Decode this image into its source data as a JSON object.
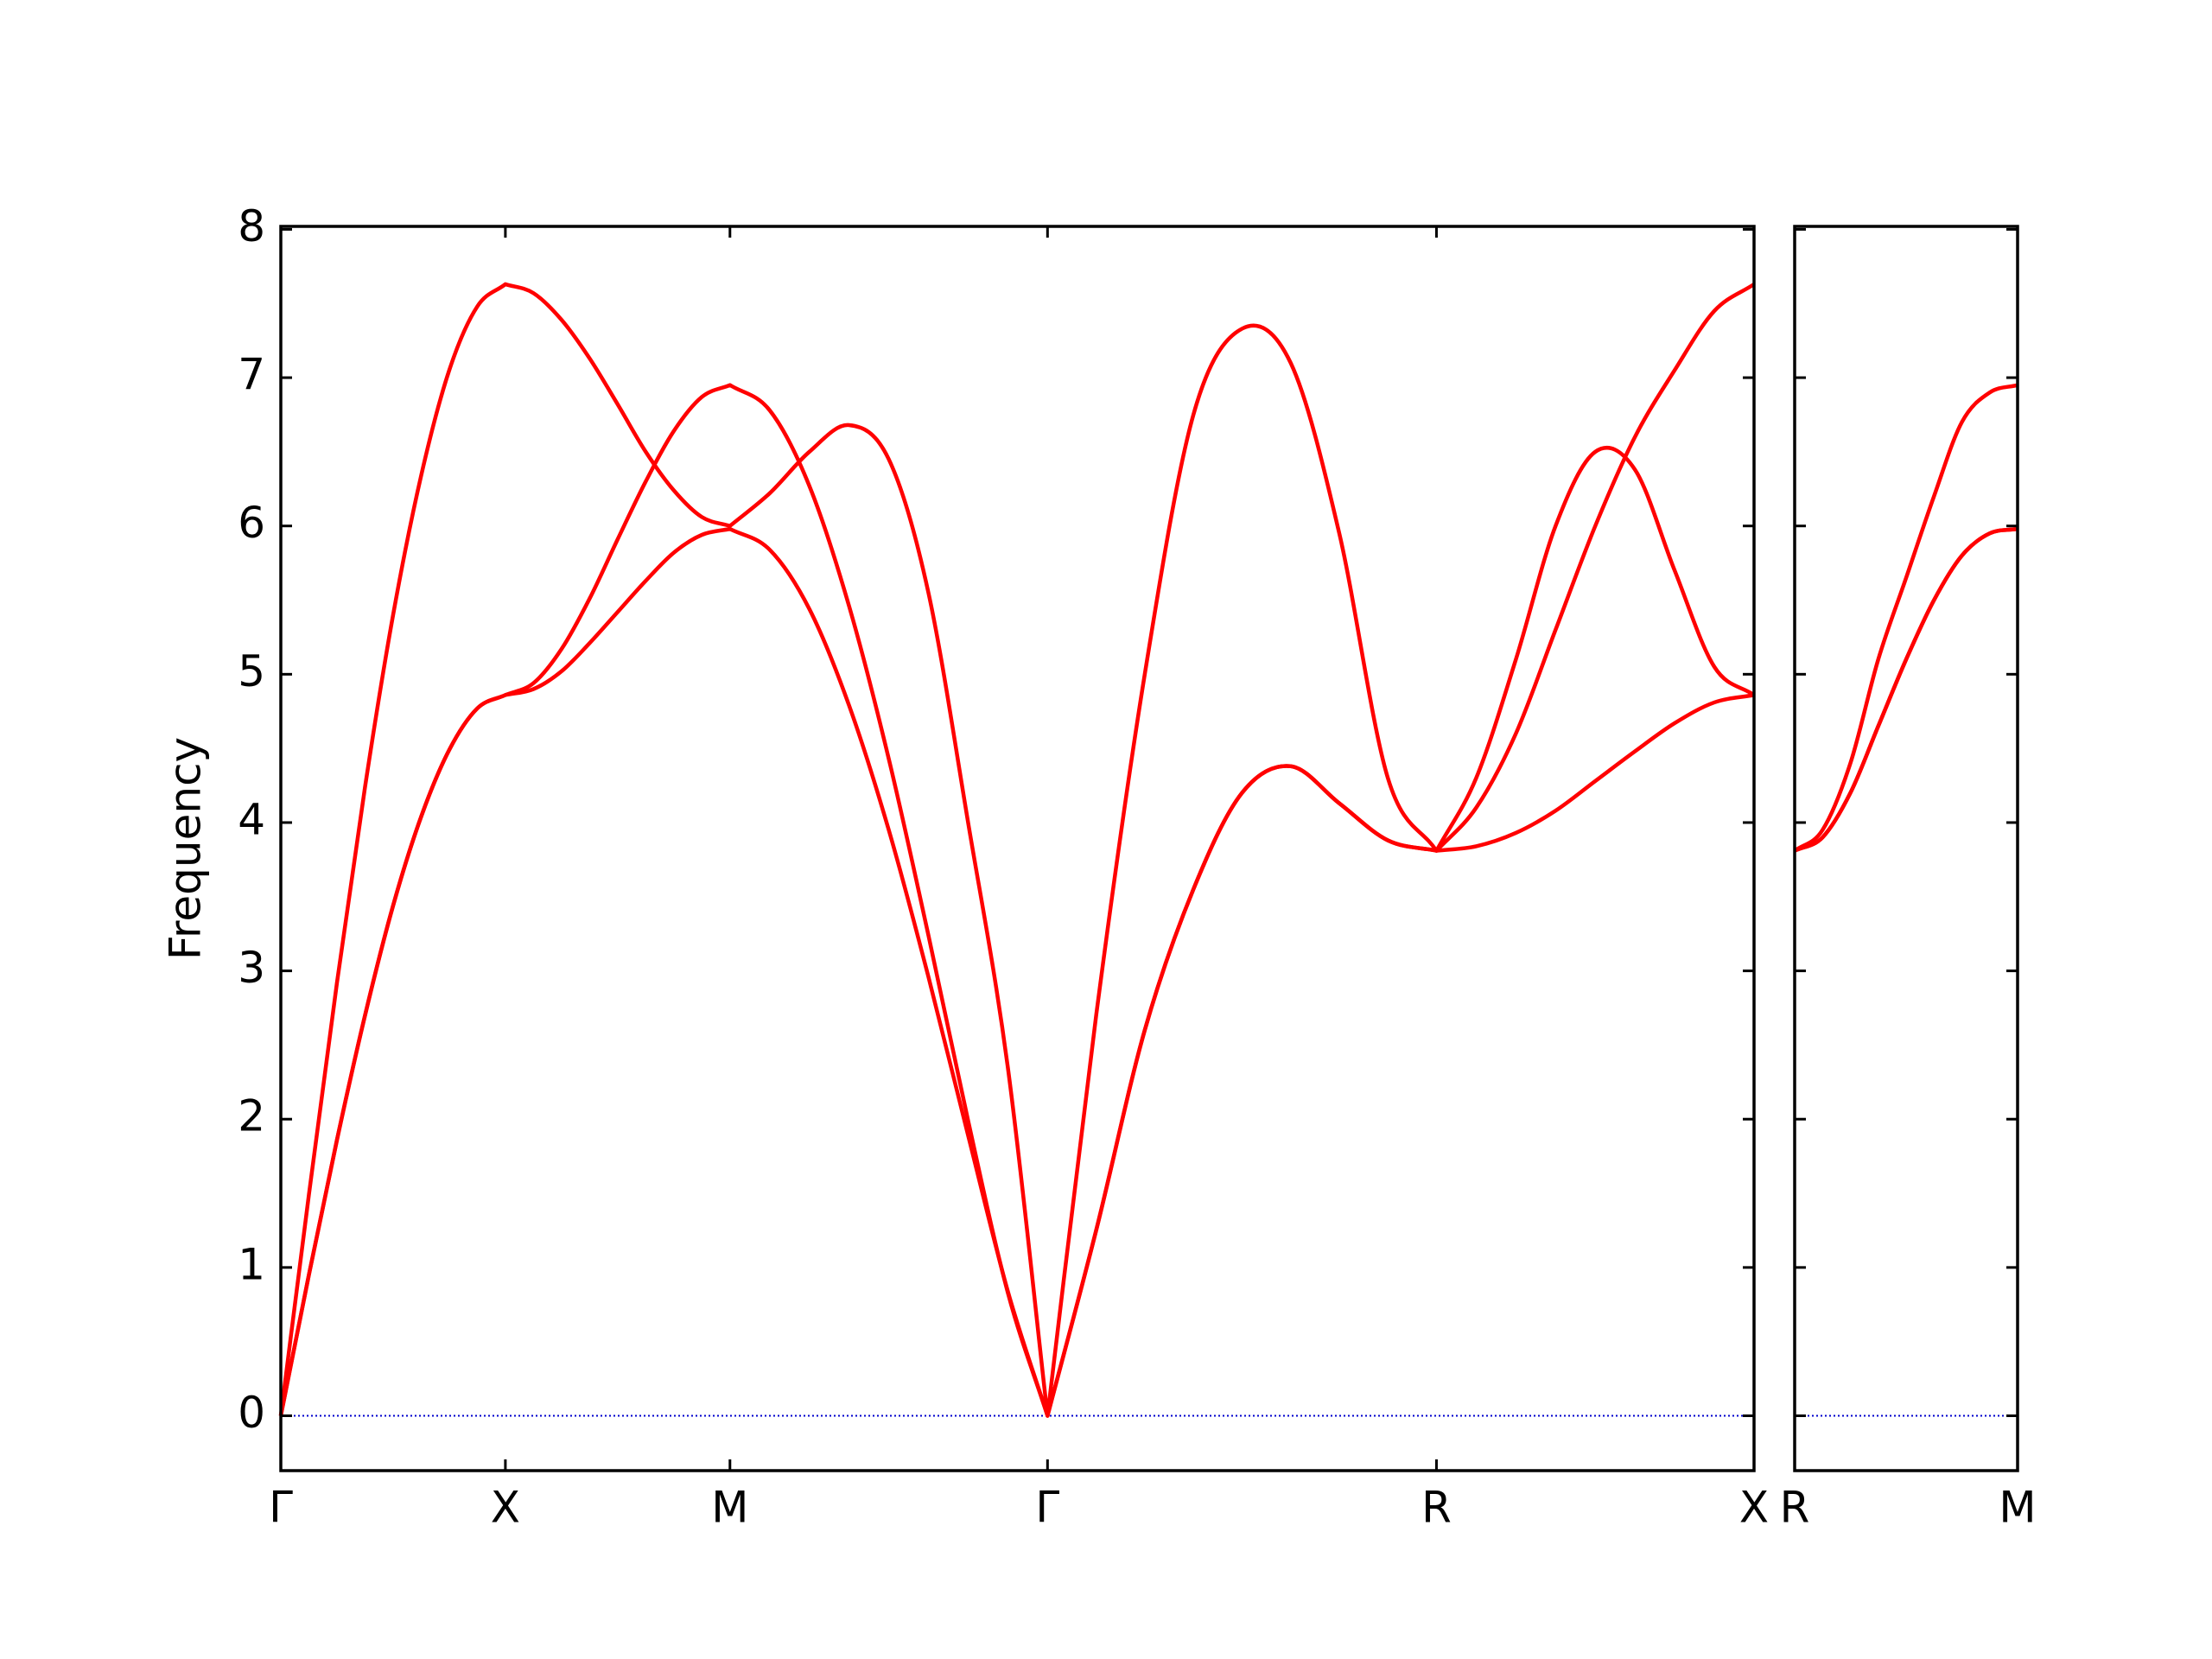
{
  "chart_data": [
    {
      "type": "line",
      "ylabel": "Frequency",
      "x": [
        0,
        0.0625,
        0.125,
        0.1875,
        0.25,
        0.3125,
        0.375,
        0.4375,
        0.5,
        0.5625,
        0.625,
        0.6875,
        0.75,
        0.8125,
        0.875,
        0.9375,
        1.0,
        1.0884,
        1.1768,
        1.2652,
        1.3536,
        1.4419,
        1.5303,
        1.6187,
        1.7071,
        1.8154,
        1.9236,
        2.0319,
        2.1401,
        2.2484,
        2.3567,
        2.4649,
        2.5731,
        2.6615,
        2.7499,
        2.8383,
        2.9267,
        3.015,
        3.1034,
        3.1918,
        3.2802
      ],
      "series": [
        {
          "color": "#ff0000",
          "values": [
            0,
            1.49,
            2.92,
            4.24,
            5.4,
            6.34,
            7.05,
            7.48,
            7.63,
            7.57,
            7.39,
            7.13,
            6.82,
            6.5,
            6.24,
            6.06,
            6.0,
            6.22,
            6.5,
            6.68,
            6.45,
            5.55,
            4.0,
            2.35,
            0,
            2.7,
            5.0,
            6.75,
            7.33,
            7.1,
            5.95,
            4.3,
            3.81,
            4.1,
            4.6,
            5.3,
            6.0,
            6.6,
            7.05,
            7.45,
            7.63
          ]
        },
        {
          "color": "#ff0000",
          "values": [
            0,
            0.95,
            1.86,
            2.7,
            3.44,
            4.04,
            4.49,
            4.77,
            4.86,
            4.94,
            5.17,
            5.51,
            5.91,
            6.3,
            6.64,
            6.87,
            6.95,
            6.78,
            6.27,
            5.46,
            4.43,
            3.24,
            1.99,
            0.83,
            0,
            1.25,
            2.6,
            3.55,
            4.2,
            4.38,
            4.13,
            3.88,
            3.81,
            4.3,
            5.1,
            6.0,
            6.5,
            6.38,
            5.7,
            5.05,
            4.86
          ]
        },
        {
          "color": "#ff0000",
          "values": [
            0,
            0.95,
            1.86,
            2.7,
            3.44,
            4.04,
            4.49,
            4.77,
            4.86,
            4.9,
            5.02,
            5.21,
            5.42,
            5.63,
            5.82,
            5.94,
            5.98,
            5.84,
            5.44,
            4.79,
            3.95,
            2.96,
            1.89,
            0.84,
            0,
            1.25,
            2.6,
            3.55,
            4.2,
            4.38,
            4.13,
            3.88,
            3.81,
            3.84,
            3.93,
            4.08,
            4.28,
            4.48,
            4.67,
            4.81,
            4.86
          ]
        }
      ],
      "xlim": [
        0,
        3.2802
      ],
      "xticks": [
        {
          "value": 0,
          "label": "Γ"
        },
        {
          "value": 0.5,
          "label": "X"
        },
        {
          "value": 1.0,
          "label": "M"
        },
        {
          "value": 1.7071,
          "label": "Γ"
        },
        {
          "value": 2.5731,
          "label": "R"
        },
        {
          "value": 3.2802,
          "label": "X"
        }
      ],
      "ylim": [
        -0.37,
        8.02
      ],
      "yticks": [
        0,
        1,
        2,
        3,
        4,
        5,
        6,
        7,
        8
      ],
      "show_ytick_labels": true,
      "hline": {
        "y": 0,
        "color": "#0000cd"
      }
    },
    {
      "type": "line",
      "x": [
        0,
        0.0625,
        0.125,
        0.1875,
        0.25,
        0.3125,
        0.375,
        0.4375,
        0.5
      ],
      "series": [
        {
          "color": "#ff0000",
          "values": [
            3.81,
            3.95,
            4.4,
            5.1,
            5.65,
            6.2,
            6.7,
            6.9,
            6.95
          ]
        },
        {
          "color": "#ff0000",
          "values": [
            3.81,
            3.9,
            4.2,
            4.65,
            5.1,
            5.5,
            5.8,
            5.95,
            5.98
          ]
        },
        {
          "color": "#ff0000",
          "values": [
            3.81,
            3.9,
            4.2,
            4.65,
            5.1,
            5.5,
            5.8,
            5.95,
            5.98
          ]
        }
      ],
      "xlim": [
        0,
        0.5
      ],
      "xticks": [
        {
          "value": 0,
          "label": "R"
        },
        {
          "value": 0.5,
          "label": "M"
        }
      ],
      "ylim": [
        -0.37,
        8.02
      ],
      "yticks": [
        0,
        1,
        2,
        3,
        4,
        5,
        6,
        7,
        8
      ],
      "show_ytick_labels": false,
      "hline": {
        "y": 0,
        "color": "#0000cd"
      }
    }
  ]
}
